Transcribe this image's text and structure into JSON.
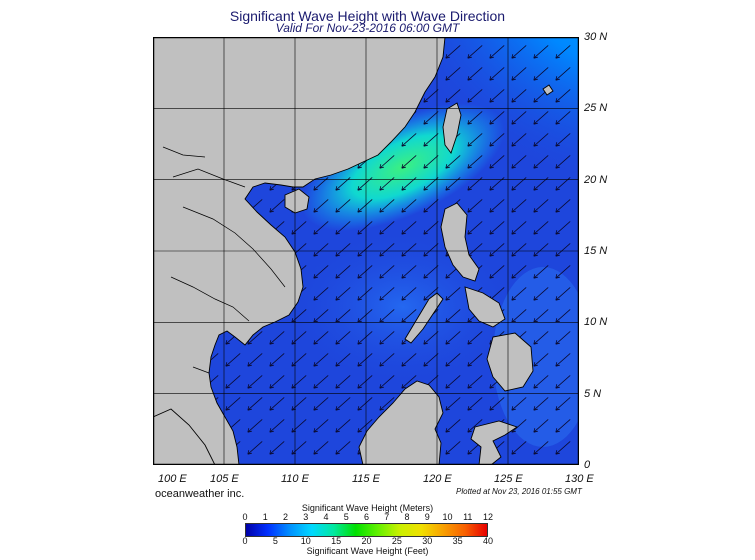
{
  "title": "Significant Wave Height with Wave Direction",
  "subtitle": "Valid For Nov-23-2016 06:00 GMT",
  "credit": "oceanweather inc.",
  "plotted": "Plotted at Nov 23, 2016 01:55 GMT",
  "lat_labels": [
    "30 N",
    "25 N",
    "20 N",
    "15 N",
    "10 N",
    "5 N",
    "0"
  ],
  "lon_labels": [
    "100 E",
    "105 E",
    "110 E",
    "115 E",
    "120 E",
    "125 E",
    "130 E"
  ],
  "colorbar": {
    "title_top": "Significant Wave Height (Meters)",
    "title_bottom": "Significant Wave Height (Feet)",
    "meters_ticks": [
      "0",
      "1",
      "2",
      "3",
      "4",
      "5",
      "6",
      "7",
      "8",
      "9",
      "10",
      "11",
      "12"
    ],
    "feet_ticks": [
      "0",
      "5",
      "10",
      "15",
      "20",
      "25",
      "30",
      "35",
      "40"
    ],
    "colors": [
      "#0000a8",
      "#0030ff",
      "#0090ff",
      "#00d8ff",
      "#00e8a0",
      "#00e000",
      "#60f000",
      "#c8f000",
      "#f0e000",
      "#f8a000",
      "#f86000",
      "#e80000"
    ]
  },
  "colors": {
    "land": "#c0c0c0",
    "ocean_base": "#1e46dc",
    "frame": "#000000",
    "arrow": "#0a0a30"
  }
}
